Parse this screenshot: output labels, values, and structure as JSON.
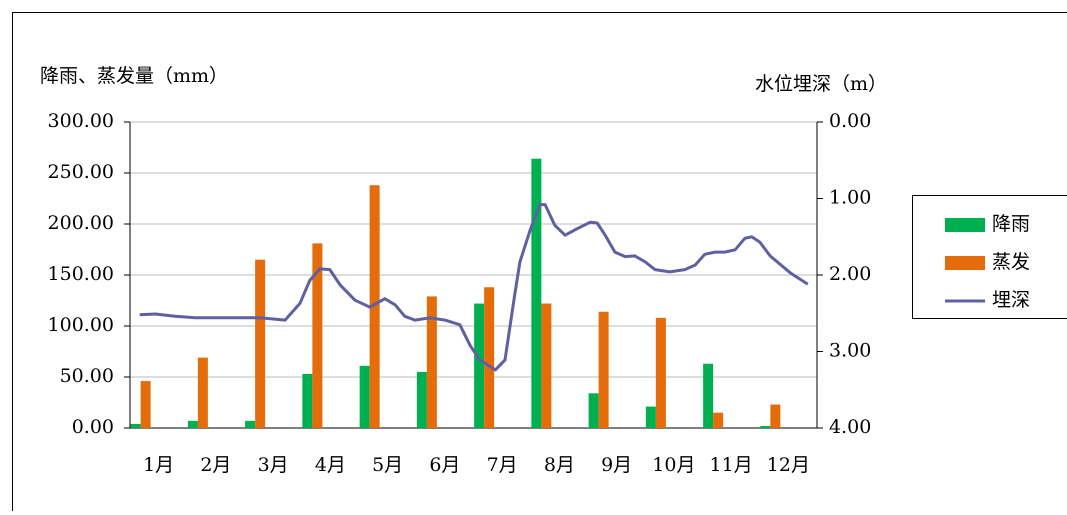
{
  "chart_data": {
    "type": "bar-line",
    "y_label": "降雨、蒸发量（mm）",
    "y2_label": "水位埋深（m）",
    "categories": [
      "1月",
      "2月",
      "3月",
      "4月",
      "5月",
      "6月",
      "7月",
      "8月",
      "9月",
      "10月",
      "11月",
      "12月"
    ],
    "ylim": [
      0,
      300
    ],
    "yticks": [
      {
        "value": 0,
        "label": "0.00"
      },
      {
        "value": 50,
        "label": "50.00"
      },
      {
        "value": 100,
        "label": "100.00"
      },
      {
        "value": 150,
        "label": "150.00"
      },
      {
        "value": 200,
        "label": "200.00"
      },
      {
        "value": 250,
        "label": "250.00"
      },
      {
        "value": 300,
        "label": "300.00"
      }
    ],
    "y2lim": [
      4,
      0
    ],
    "y2ticks": [
      {
        "value": 0,
        "label": "0.00"
      },
      {
        "value": 1,
        "label": "1.00"
      },
      {
        "value": 2,
        "label": "2.00"
      },
      {
        "value": 3,
        "label": "3.00"
      },
      {
        "value": 4,
        "label": "4.00"
      }
    ],
    "grid": true,
    "legend": "right",
    "series": [
      {
        "name": "降雨",
        "type": "bar",
        "color": "#00b050",
        "values": [
          4,
          7,
          7,
          53,
          61,
          55,
          122,
          264,
          34,
          21,
          63,
          2
        ]
      },
      {
        "name": "蒸发",
        "type": "bar",
        "color": "#e46c0a",
        "values": [
          46,
          69,
          165,
          181,
          238,
          129,
          138,
          122,
          114,
          108,
          15,
          23
        ]
      },
      {
        "name": "埋深",
        "type": "line",
        "axis": "y2",
        "color": "#6060a0",
        "x": [
          0.67,
          0.94,
          1.29,
          1.64,
          2.77,
          3.21,
          3.47,
          3.64,
          3.82,
          3.99,
          4.17,
          4.43,
          4.69,
          4.95,
          5.13,
          5.3,
          5.48,
          5.74,
          6.0,
          6.26,
          6.44,
          6.61,
          6.88,
          7.05,
          7.22,
          7.31,
          7.49,
          7.66,
          7.75,
          7.92,
          8.1,
          8.27,
          8.54,
          8.66,
          8.8,
          8.97,
          9.15,
          9.32,
          9.5,
          9.67,
          9.93,
          10.19,
          10.37,
          10.54,
          10.72,
          10.89,
          11.07,
          11.24,
          11.36,
          11.5,
          11.68,
          12.03,
          12.34
        ],
        "values": [
          2.52,
          2.51,
          2.54,
          2.56,
          2.56,
          2.59,
          2.37,
          2.07,
          1.92,
          1.93,
          2.13,
          2.33,
          2.42,
          2.31,
          2.39,
          2.54,
          2.59,
          2.56,
          2.59,
          2.65,
          2.92,
          3.11,
          3.24,
          3.11,
          2.26,
          1.83,
          1.41,
          1.08,
          1.08,
          1.35,
          1.48,
          1.41,
          1.31,
          1.32,
          1.48,
          1.7,
          1.76,
          1.75,
          1.83,
          1.93,
          1.96,
          1.93,
          1.87,
          1.73,
          1.7,
          1.7,
          1.67,
          1.52,
          1.5,
          1.57,
          1.75,
          1.97,
          2.12
        ]
      }
    ]
  }
}
